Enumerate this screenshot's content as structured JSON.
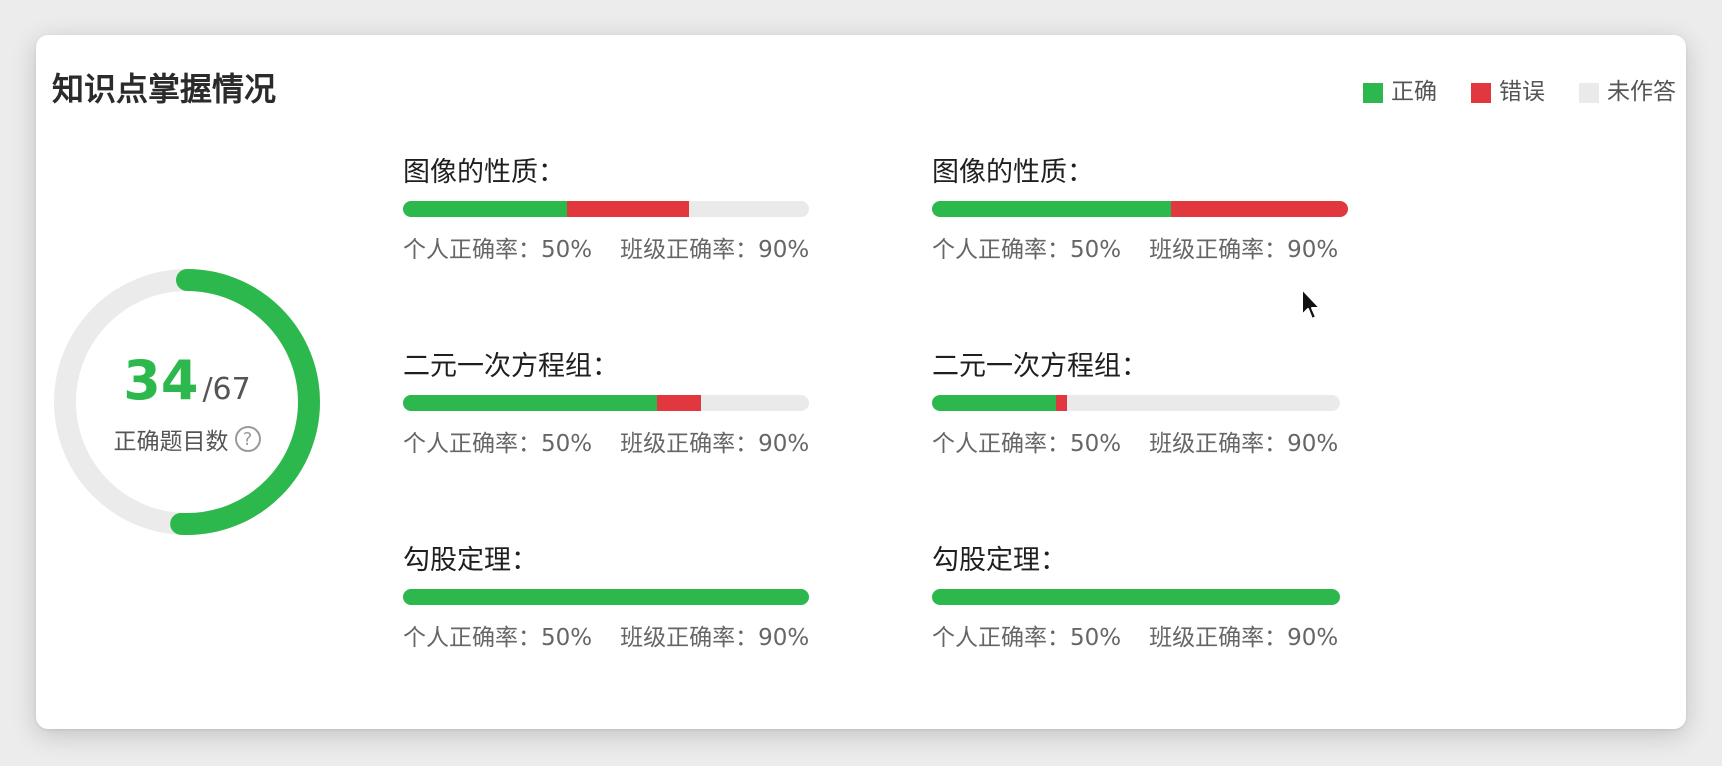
{
  "title": "知识点掌握情况",
  "legend": [
    {
      "label": "正确",
      "color": "#2db84d"
    },
    {
      "label": "错误",
      "color": "#e0383e"
    },
    {
      "label": "未作答",
      "color": "#eaeaea"
    }
  ],
  "summary": {
    "correct": "34",
    "total": "/67",
    "label": "正确题目数",
    "help_glyph": "?",
    "ring_fraction": 0.5075
  },
  "knowledge_points": [
    {
      "name": "图像的性质：",
      "correct": 0.405,
      "wrong": 0.3,
      "personal": "个人正确率：50%",
      "class": "班级正确率：90%"
    },
    {
      "name": "图像的性质：",
      "correct": 0.575,
      "wrong": 0.425,
      "personal": "个人正确率：50%",
      "class": "班级正确率：90%"
    },
    {
      "name": "二元一次方程组：",
      "correct": 0.625,
      "wrong": 0.11,
      "personal": "个人正确率：50%",
      "class": "班级正确率：90%"
    },
    {
      "name": "二元一次方程组：",
      "correct": 0.305,
      "wrong": 0.025,
      "personal": "个人正确率：50%",
      "class": "班级正确率：90%"
    },
    {
      "name": "勾股定理：",
      "correct": 1.0,
      "wrong": 0.0,
      "personal": "个人正确率：50%",
      "class": "班级正确率：90%"
    },
    {
      "name": "勾股定理：",
      "correct": 1.0,
      "wrong": 0.0,
      "personal": "个人正确率：50%",
      "class": "班级正确率：90%"
    }
  ],
  "colors": {
    "correct": "#2db84d",
    "wrong": "#e0383e",
    "unanswered": "#eaeaea"
  }
}
